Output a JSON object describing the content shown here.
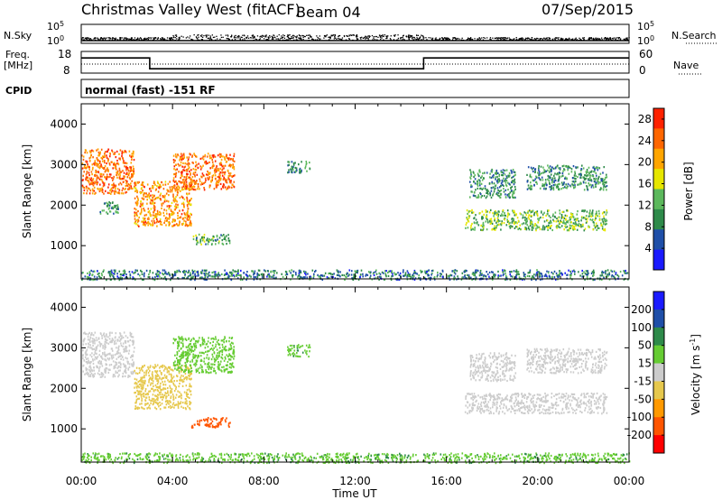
{
  "header": {
    "station": "Christmas Valley West (fitACF)",
    "beam": "Beam 04",
    "date": "07/Sep/2015"
  },
  "labels": {
    "nsky": "N.Sky",
    "nsearch": "N.Search",
    "freq_line1": "Freq.",
    "freq_line2": "[MHz]",
    "nave": "Nave",
    "cpid": "CPID",
    "cpid_value": "normal (fast) -151 RF",
    "nsky_ticks": [
      "10^5",
      "10^0"
    ],
    "nsearch_ticks": [
      "10^5",
      "10^0"
    ],
    "freq_ticks": [
      "18",
      "8"
    ],
    "nave_ticks": [
      "60",
      "0"
    ]
  },
  "chart_data": [
    {
      "type": "heatmap",
      "name": "power",
      "ylabel": "Slant Range [km]",
      "colorbar_label": "Power [dB]",
      "xlabel": "Time UT",
      "x_ticks": [
        "00:00",
        "04:00",
        "08:00",
        "12:00",
        "16:00",
        "20:00",
        "00:00"
      ],
      "xlim_hours": [
        0,
        24
      ],
      "y_ticks": [
        1000,
        2000,
        3000,
        4000
      ],
      "ylim": [
        180,
        4500
      ],
      "colorbar_ticks": [
        4,
        8,
        12,
        16,
        20,
        24,
        28
      ],
      "colorbar_range": [
        0,
        30
      ],
      "colors": [
        "#1a1aff",
        "#1f4fa8",
        "#2e8a4a",
        "#5cb85c",
        "#e6e600",
        "#ffa500",
        "#ff6600",
        "#ff2200"
      ],
      "regions": [
        {
          "t0": 0.0,
          "t1": 2.3,
          "r0": 2300,
          "r1": 3400,
          "value": 24
        },
        {
          "t0": 0.8,
          "t1": 1.6,
          "r0": 1800,
          "r1": 2100,
          "value": 10
        },
        {
          "t0": 2.3,
          "t1": 4.8,
          "r0": 1500,
          "r1": 2600,
          "value": 22
        },
        {
          "t0": 4.0,
          "t1": 6.7,
          "r0": 2400,
          "r1": 3300,
          "value": 24
        },
        {
          "t0": 4.8,
          "t1": 6.5,
          "r0": 1050,
          "r1": 1300,
          "value": 12
        },
        {
          "t0": 9.0,
          "t1": 10.0,
          "r0": 2800,
          "r1": 3100,
          "value": 9
        },
        {
          "t0": 16.8,
          "t1": 23.0,
          "r0": 1400,
          "r1": 1900,
          "value": 13
        },
        {
          "t0": 17.0,
          "t1": 19.0,
          "r0": 2200,
          "r1": 2900,
          "value": 10
        },
        {
          "t0": 19.5,
          "t1": 23.0,
          "r0": 2400,
          "r1": 3000,
          "value": 10
        },
        {
          "t0": 0.0,
          "t1": 24.0,
          "r0": 180,
          "r1": 420,
          "value": 8
        }
      ]
    },
    {
      "type": "heatmap",
      "name": "velocity",
      "ylabel": "Slant Range [km]",
      "colorbar_label": "Velocity [m s^-1]",
      "xlabel": "Time UT",
      "x_ticks": [
        "00:00",
        "04:00",
        "08:00",
        "12:00",
        "16:00",
        "20:00",
        "00:00"
      ],
      "xlim_hours": [
        0,
        24
      ],
      "y_ticks": [
        1000,
        2000,
        3000,
        4000
      ],
      "ylim": [
        180,
        4500
      ],
      "colorbar_ticks": [
        200,
        100,
        50,
        15,
        -15,
        -50,
        -100,
        -200
      ],
      "colors": [
        "#1a1aff",
        "#1f4fa8",
        "#2e8a4a",
        "#66cc33",
        "#cccccc",
        "#e6c84d",
        "#ff9900",
        "#ff5500",
        "#ff0000"
      ],
      "regions": [
        {
          "t0": 0.0,
          "t1": 2.3,
          "r0": 2300,
          "r1": 3400,
          "value": 0
        },
        {
          "t0": 2.3,
          "t1": 4.8,
          "r0": 1500,
          "r1": 2600,
          "value": -30
        },
        {
          "t0": 4.0,
          "t1": 6.7,
          "r0": 2400,
          "r1": 3300,
          "value": 30
        },
        {
          "t0": 4.8,
          "t1": 6.5,
          "r0": 1050,
          "r1": 1300,
          "value": -180
        },
        {
          "t0": 9.0,
          "t1": 10.0,
          "r0": 2800,
          "r1": 3100,
          "value": 40
        },
        {
          "t0": 16.8,
          "t1": 23.0,
          "r0": 1400,
          "r1": 1900,
          "value": 0
        },
        {
          "t0": 17.0,
          "t1": 19.0,
          "r0": 2200,
          "r1": 2900,
          "value": 0
        },
        {
          "t0": 19.5,
          "t1": 23.0,
          "r0": 2400,
          "r1": 3000,
          "value": 0
        },
        {
          "t0": 0.0,
          "t1": 24.0,
          "r0": 180,
          "r1": 420,
          "value": 40
        }
      ]
    }
  ],
  "freq_trace": [
    {
      "t": 0.0,
      "v": 15
    },
    {
      "t": 3.0,
      "v": 15
    },
    {
      "t": 3.0,
      "v": 10
    },
    {
      "t": 15.0,
      "v": 10
    },
    {
      "t": 15.0,
      "v": 15
    },
    {
      "t": 24.0,
      "v": 15
    }
  ]
}
